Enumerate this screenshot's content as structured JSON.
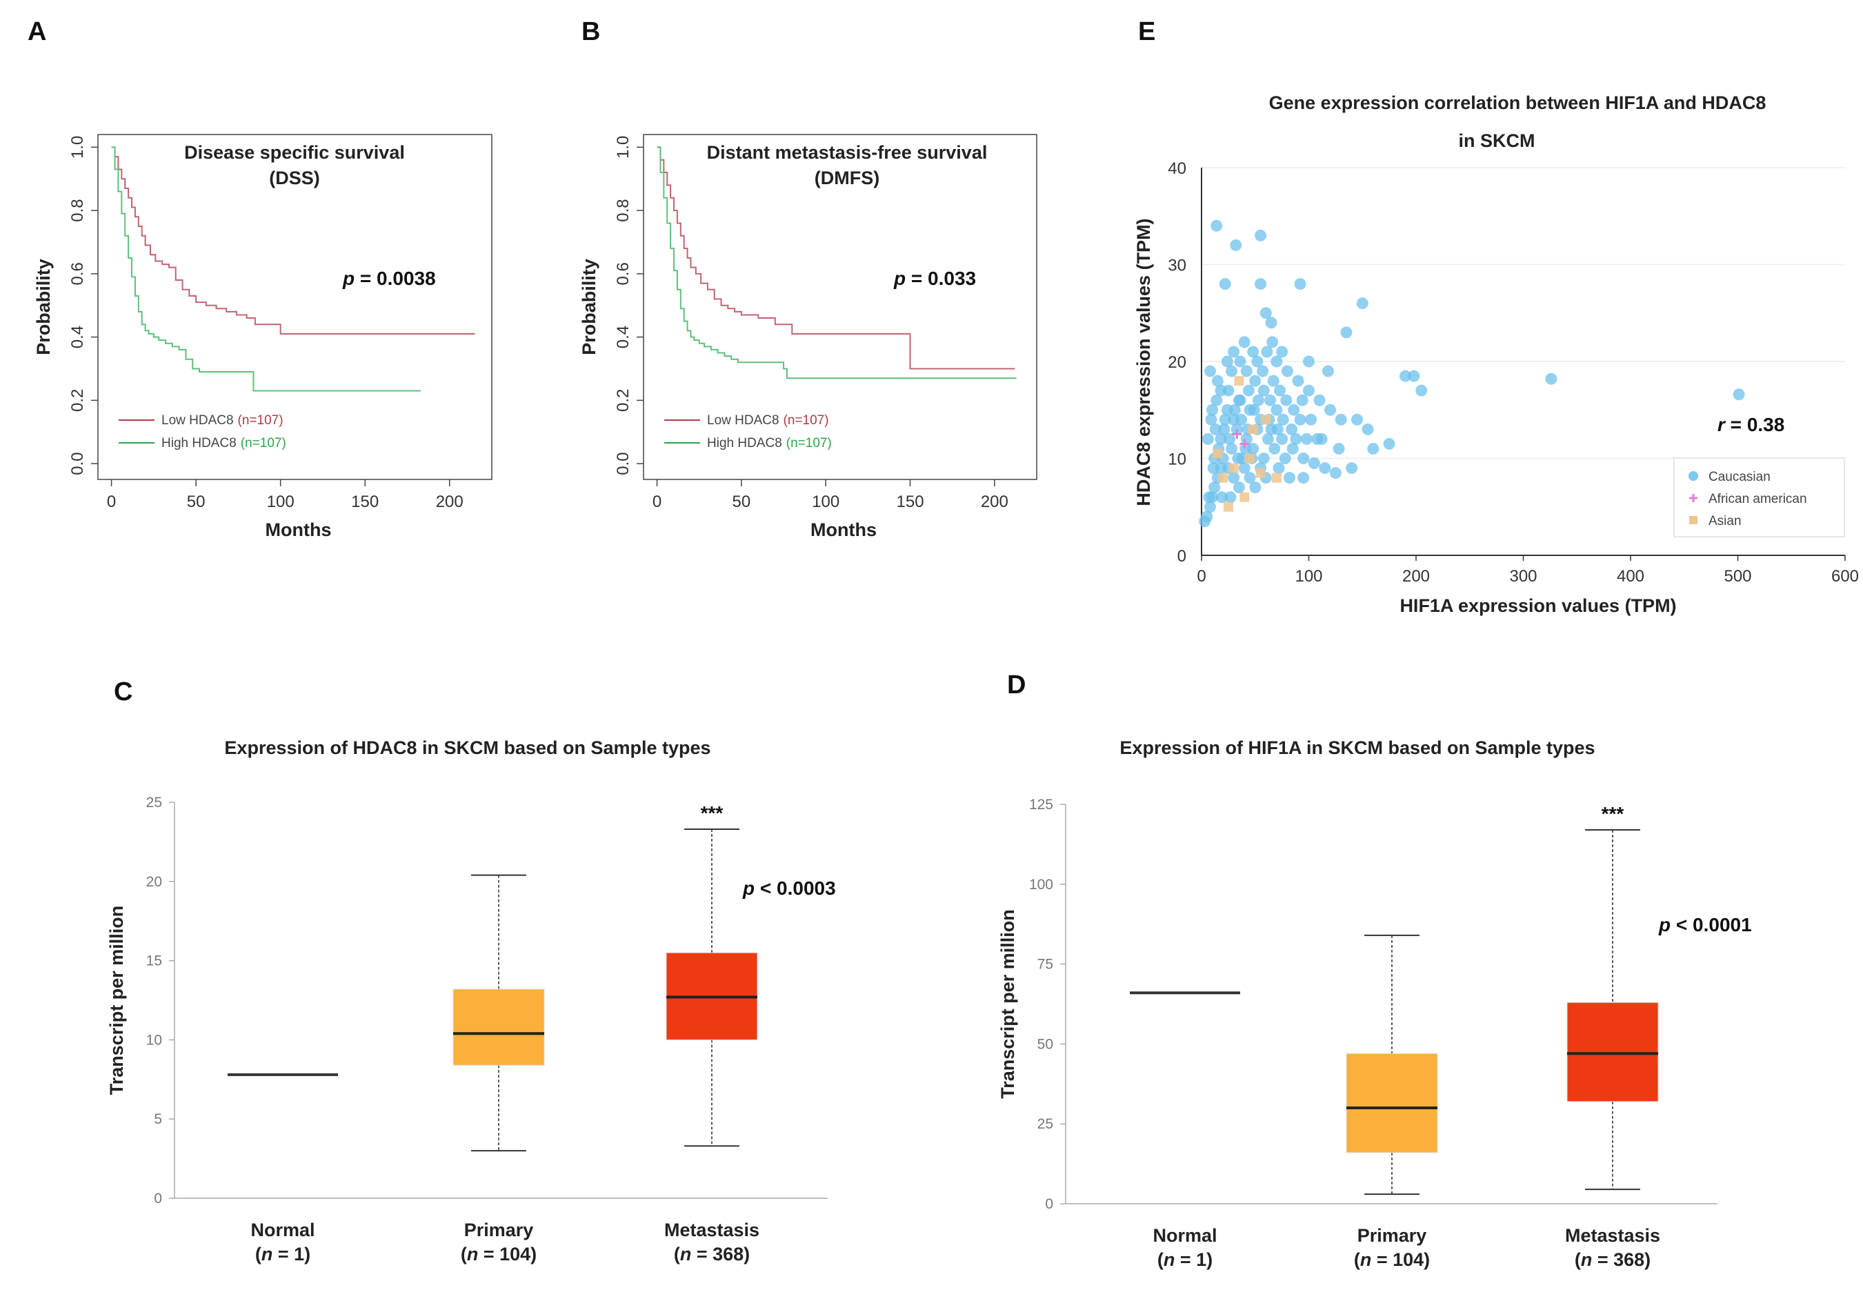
{
  "panels": {
    "A": "A",
    "B": "B",
    "C": "C",
    "D": "D",
    "E": "E"
  },
  "chart_data": [
    {
      "id": "A",
      "type": "line",
      "title": "Disease specific survival",
      "subtitle": "(DSS)",
      "xlabel": "Months",
      "ylabel": "Probability",
      "xlim": [
        -8,
        225
      ],
      "ylim": [
        -0.05,
        1.04
      ],
      "xticks": [
        0,
        50,
        100,
        150,
        200
      ],
      "yticks": [
        0.0,
        0.2,
        0.4,
        0.6,
        0.8,
        1.0
      ],
      "ytick_labels": [
        "0.0",
        "0.2",
        "0.4",
        "0.6",
        "0.8",
        "1.0"
      ],
      "pvalue_label": "p",
      "pvalue_text": " = 0.0038",
      "legend": [
        {
          "label": "Low HDAC8",
          "n": "(n=107)",
          "color": "#b03a48"
        },
        {
          "label": "High HDAC8",
          "n": "(n=107)",
          "color": "#2ea34a"
        }
      ],
      "series": [
        {
          "name": "Low HDAC8",
          "color": "#c0646f",
          "x": [
            0,
            2,
            4,
            6,
            8,
            10,
            12,
            14,
            16,
            18,
            20,
            23,
            26,
            30,
            34,
            38,
            42,
            46,
            50,
            56,
            62,
            68,
            74,
            80,
            85,
            100,
            150,
            215
          ],
          "y": [
            1.0,
            0.97,
            0.93,
            0.9,
            0.87,
            0.84,
            0.81,
            0.78,
            0.75,
            0.72,
            0.69,
            0.66,
            0.64,
            0.63,
            0.62,
            0.58,
            0.55,
            0.53,
            0.51,
            0.5,
            0.49,
            0.48,
            0.47,
            0.46,
            0.44,
            0.41,
            0.41,
            0.41
          ]
        },
        {
          "name": "High HDAC8",
          "color": "#5fbf7a",
          "x": [
            0,
            2,
            4,
            6,
            8,
            10,
            12,
            14,
            16,
            18,
            20,
            22,
            25,
            28,
            32,
            36,
            40,
            44,
            48,
            52,
            60,
            70,
            80,
            84,
            120,
            183
          ],
          "y": [
            1.0,
            0.93,
            0.86,
            0.79,
            0.72,
            0.65,
            0.59,
            0.53,
            0.48,
            0.44,
            0.42,
            0.41,
            0.4,
            0.39,
            0.38,
            0.37,
            0.36,
            0.33,
            0.3,
            0.29,
            0.29,
            0.29,
            0.29,
            0.23,
            0.23,
            0.23
          ]
        }
      ]
    },
    {
      "id": "B",
      "type": "line",
      "title": "Distant metastasis-free survival",
      "subtitle": "(DMFS)",
      "xlabel": "Months",
      "ylabel": "Probability",
      "xlim": [
        -8,
        225
      ],
      "ylim": [
        -0.05,
        1.04
      ],
      "xticks": [
        0,
        50,
        100,
        150,
        200
      ],
      "yticks": [
        0.0,
        0.2,
        0.4,
        0.6,
        0.8,
        1.0
      ],
      "ytick_labels": [
        "0.0",
        "0.2",
        "0.4",
        "0.6",
        "0.8",
        "1.0"
      ],
      "pvalue_label": "p",
      "pvalue_text": " = 0.033",
      "legend": [
        {
          "label": "Low HDAC8",
          "n": "(n=107)",
          "color": "#b03a48"
        },
        {
          "label": "High HDAC8",
          "n": "(n=107)",
          "color": "#2ea34a"
        }
      ],
      "series": [
        {
          "name": "Low HDAC8",
          "color": "#c0646f",
          "x": [
            0,
            2,
            4,
            6,
            8,
            10,
            12,
            14,
            16,
            18,
            20,
            23,
            26,
            30,
            34,
            38,
            42,
            46,
            50,
            60,
            70,
            80,
            100,
            149,
            150,
            212
          ],
          "y": [
            1.0,
            0.96,
            0.92,
            0.88,
            0.84,
            0.8,
            0.76,
            0.72,
            0.68,
            0.65,
            0.62,
            0.6,
            0.57,
            0.55,
            0.52,
            0.5,
            0.49,
            0.48,
            0.47,
            0.46,
            0.44,
            0.41,
            0.41,
            0.41,
            0.3,
            0.3
          ]
        },
        {
          "name": "High HDAC8",
          "color": "#5fbf7a",
          "x": [
            0,
            2,
            4,
            6,
            8,
            10,
            12,
            14,
            16,
            18,
            20,
            22,
            25,
            28,
            32,
            36,
            40,
            44,
            48,
            55,
            65,
            75,
            77,
            150,
            213
          ],
          "y": [
            1.0,
            0.92,
            0.84,
            0.76,
            0.68,
            0.61,
            0.55,
            0.49,
            0.45,
            0.42,
            0.4,
            0.39,
            0.38,
            0.37,
            0.36,
            0.35,
            0.34,
            0.33,
            0.32,
            0.32,
            0.32,
            0.3,
            0.27,
            0.27,
            0.27
          ]
        }
      ]
    },
    {
      "id": "C",
      "type": "box",
      "title": "Expression of HDAC8 in SKCM based on Sample types",
      "ylabel": "Transcript per million",
      "ylim": [
        0,
        25
      ],
      "yticks": [
        0,
        5,
        10,
        15,
        20,
        25
      ],
      "categories": [
        {
          "name": "Normal",
          "n_label": "n",
          "n_text": " = 1)",
          "min": 7.8,
          "q1": 7.8,
          "median": 7.8,
          "q3": 7.8,
          "max": 7.8,
          "color": "#555555"
        },
        {
          "name": "Primary",
          "n_label": "n",
          "n_text": " = 104)",
          "min": 3.0,
          "q1": 8.4,
          "median": 10.4,
          "q3": 13.2,
          "max": 20.4,
          "color": "#fbb03b"
        },
        {
          "name": "Metastasis",
          "n_label": "n",
          "n_text": " = 368)",
          "min": 3.3,
          "q1": 10.0,
          "median": 12.7,
          "q3": 15.5,
          "max": 23.3,
          "color": "#ee3a12"
        }
      ],
      "significance": "***",
      "pvalue_label": "p",
      "pvalue_text": " < 0.0003"
    },
    {
      "id": "D",
      "type": "box",
      "title": "Expression of HIF1A in SKCM based on Sample types",
      "ylabel": "Transcript per million",
      "ylim": [
        0,
        125
      ],
      "yticks": [
        0,
        25,
        50,
        75,
        100,
        125
      ],
      "categories": [
        {
          "name": "Normal",
          "n_label": "n",
          "n_text": " = 1)",
          "min": 66,
          "q1": 66,
          "median": 66,
          "q3": 66,
          "max": 66,
          "color": "#555555"
        },
        {
          "name": "Primary",
          "n_label": "n",
          "n_text": " = 104)",
          "min": 3,
          "q1": 16,
          "median": 30,
          "q3": 47,
          "max": 84,
          "color": "#fbb03b"
        },
        {
          "name": "Metastasis",
          "n_label": "n",
          "n_text": " = 368)",
          "min": 4.5,
          "q1": 32,
          "median": 47,
          "q3": 63,
          "max": 117,
          "color": "#ee3a12"
        }
      ],
      "significance": "***",
      "pvalue_label": "p",
      "pvalue_text": " < 0.0001"
    },
    {
      "id": "E",
      "type": "scatter",
      "title": "Gene expression correlation between HIF1A and HDAC8",
      "subtitle": "in SKCM",
      "xlabel": "HIF1A expression values (TPM)",
      "ylabel": "HDAC8 expression values (TPM)",
      "xlim": [
        0,
        600
      ],
      "ylim": [
        0,
        40
      ],
      "xticks": [
        0,
        100,
        200,
        300,
        400,
        500,
        600
      ],
      "yticks": [
        0,
        10,
        20,
        30,
        40
      ],
      "rvalue_label": "r",
      "rvalue_text": " = 0.38",
      "legend": [
        {
          "label": "Caucasian",
          "color": "#7cc8ee"
        },
        {
          "label": "African american",
          "color": "#e27fd3"
        },
        {
          "label": "Asian",
          "color": "#f0c58e"
        }
      ],
      "series": [
        {
          "name": "Caucasian",
          "color": "#6cc0ec",
          "points": [
            [
              14,
              34
            ],
            [
              32,
              32
            ],
            [
              55,
              33
            ],
            [
              22,
              28
            ],
            [
              55,
              28
            ],
            [
              92,
              28
            ],
            [
              150,
              26
            ],
            [
              60,
              25
            ],
            [
              65,
              24
            ],
            [
              135,
              23
            ],
            [
              40,
              22
            ],
            [
              48,
              21
            ],
            [
              30,
              21
            ],
            [
              75,
              21
            ],
            [
              100,
              20
            ],
            [
              118,
              19
            ],
            [
              70,
              20
            ],
            [
              190,
              18.5
            ],
            [
              198,
              18.5
            ],
            [
              205,
              17
            ],
            [
              326,
              18.2
            ],
            [
              501,
              16.6
            ],
            [
              8,
              19
            ],
            [
              15,
              18
            ],
            [
              25,
              17
            ],
            [
              35,
              16
            ],
            [
              45,
              15
            ],
            [
              55,
              14
            ],
            [
              65,
              13
            ],
            [
              75,
              12
            ],
            [
              85,
              11
            ],
            [
              95,
              10
            ],
            [
              105,
              9.5
            ],
            [
              115,
              9
            ],
            [
              125,
              8.5
            ],
            [
              140,
              9
            ],
            [
              160,
              11
            ],
            [
              175,
              11.5
            ],
            [
              155,
              13
            ],
            [
              130,
              14
            ],
            [
              120,
              15
            ],
            [
              110,
              16
            ],
            [
              100,
              17
            ],
            [
              90,
              18
            ],
            [
              80,
              19
            ],
            [
              12,
              10
            ],
            [
              18,
              12
            ],
            [
              22,
              14
            ],
            [
              28,
              11
            ],
            [
              33,
              13
            ],
            [
              38,
              10
            ],
            [
              42,
              12
            ],
            [
              48,
              11
            ],
            [
              52,
              13
            ],
            [
              58,
              10
            ],
            [
              62,
              12
            ],
            [
              68,
              11
            ],
            [
              72,
              9
            ],
            [
              78,
              10
            ],
            [
              82,
              8
            ],
            [
              88,
              12
            ],
            [
              5,
              4
            ],
            [
              8,
              5
            ],
            [
              10,
              6
            ],
            [
              12,
              7
            ],
            [
              15,
              8
            ],
            [
              18,
              9
            ],
            [
              20,
              10
            ],
            [
              25,
              9
            ],
            [
              30,
              8
            ],
            [
              35,
              7
            ],
            [
              40,
              9
            ],
            [
              45,
              8
            ],
            [
              50,
              7
            ],
            [
              55,
              9
            ],
            [
              60,
              8
            ],
            [
              10,
              15
            ],
            [
              14,
              16
            ],
            [
              18,
              17
            ],
            [
              24,
              15
            ],
            [
              30,
              14
            ],
            [
              36,
              16
            ],
            [
              44,
              17
            ],
            [
              50,
              18
            ],
            [
              58,
              17
            ],
            [
              64,
              16
            ],
            [
              70,
              15
            ],
            [
              76,
              14
            ],
            [
              84,
              13
            ],
            [
              92,
              14
            ],
            [
              98,
              12
            ],
            [
              6,
              12
            ],
            [
              9,
              14
            ],
            [
              13,
              13
            ],
            [
              16,
              11
            ],
            [
              21,
              13
            ],
            [
              26,
              12
            ],
            [
              31,
              15
            ],
            [
              37,
              14
            ],
            [
              43,
              13
            ],
            [
              49,
              15
            ],
            [
              53,
              16
            ],
            [
              57,
              19
            ],
            [
              61,
              21
            ],
            [
              67,
              18
            ],
            [
              73,
              17
            ],
            [
              79,
              16
            ],
            [
              86,
              15
            ],
            [
              94,
              16
            ],
            [
              102,
              14
            ],
            [
              108,
              12
            ],
            [
              3,
              3.5
            ],
            [
              7,
              6
            ],
            [
              11,
              9
            ],
            [
              19,
              6
            ],
            [
              27,
              6
            ],
            [
              34,
              10
            ],
            [
              41,
              11
            ],
            [
              47,
              10
            ],
            [
              63,
              14
            ],
            [
              71,
              13
            ],
            [
              24,
              20
            ],
            [
              28,
              19
            ],
            [
              36,
              20
            ],
            [
              42,
              19
            ],
            [
              52,
              20
            ],
            [
              66,
              22
            ],
            [
              112,
              12
            ],
            [
              128,
              11
            ],
            [
              145,
              14
            ],
            [
              95,
              8
            ]
          ]
        },
        {
          "name": "African american",
          "color": "#e27fd3",
          "points": [
            [
              40,
              11.5
            ],
            [
              33,
              12.5
            ]
          ]
        },
        {
          "name": "Asian",
          "color": "#f0c58e",
          "points": [
            [
              25,
              5
            ],
            [
              40,
              6
            ],
            [
              20,
              8
            ],
            [
              15,
              10.5
            ],
            [
              30,
              9
            ],
            [
              45,
              10
            ],
            [
              55,
              8.5
            ],
            [
              48,
              13
            ],
            [
              60,
              14
            ],
            [
              35,
              18
            ],
            [
              70,
              8
            ]
          ]
        }
      ]
    }
  ]
}
